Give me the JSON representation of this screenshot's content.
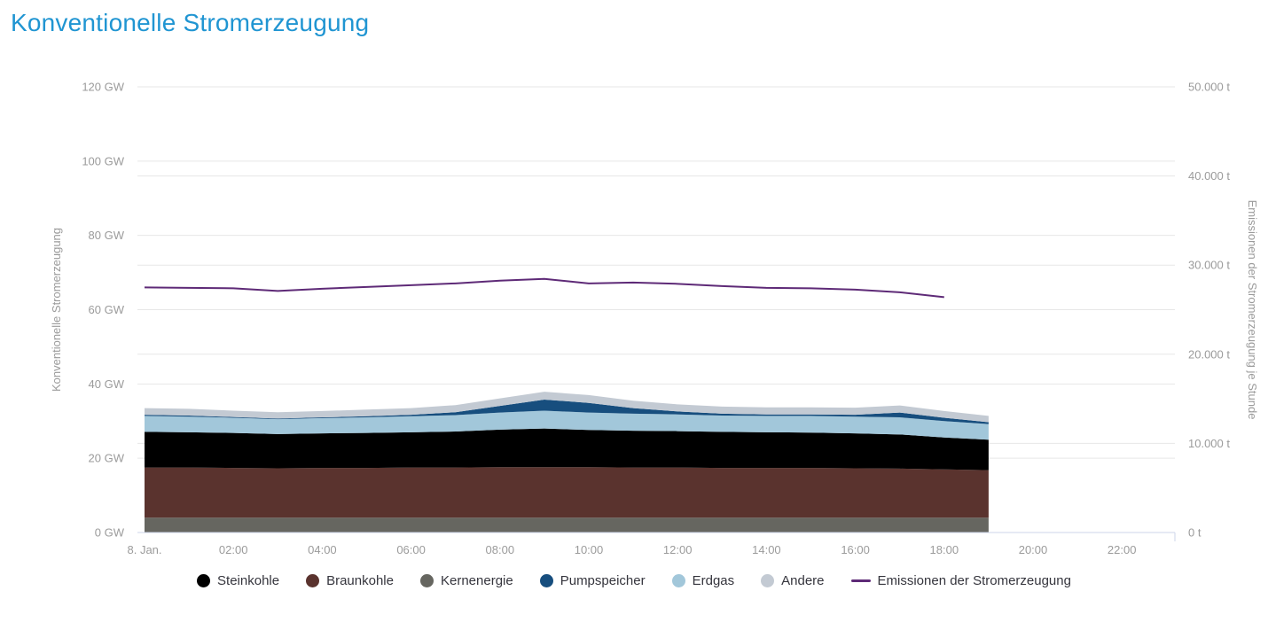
{
  "title": "Konventionelle Stromerzeugung",
  "colors": {
    "title": "#2095d2",
    "axis_text": "#9b9b9b",
    "grid": "#e7e7e7",
    "axis_line": "#ccd6ea",
    "legend_text": "#35353d"
  },
  "chart_data": {
    "type": "area",
    "stacked": true,
    "title": "Konventionelle Stromerzeugung",
    "legend_position": "bottom",
    "x_hours": [
      0,
      1,
      2,
      3,
      4,
      5,
      6,
      7,
      8,
      9,
      10,
      11,
      12,
      13,
      14,
      15,
      16,
      17,
      18,
      19
    ],
    "x_axis": {
      "range": [
        0,
        24
      ],
      "tick_hours": [
        0,
        2,
        4,
        6,
        8,
        10,
        12,
        14,
        16,
        18,
        20,
        22
      ],
      "tick_labels": [
        "8. Jan.",
        "02:00",
        "04:00",
        "06:00",
        "08:00",
        "10:00",
        "12:00",
        "14:00",
        "16:00",
        "18:00",
        "20:00",
        "22:00"
      ]
    },
    "y_left": {
      "label": "Konventionelle Stromerzeugung",
      "unit": "GW",
      "range": [
        0,
        120
      ],
      "tick_values": [
        0,
        20,
        40,
        60,
        80,
        100,
        120
      ],
      "tick_labels": [
        "0 GW",
        "20 GW",
        "40 GW",
        "60 GW",
        "80 GW",
        "100 GW",
        "120 GW"
      ]
    },
    "y_right": {
      "label": "Emissionen der Stromerzeugung je Stunde",
      "unit": "t",
      "range": [
        0,
        50000
      ],
      "tick_values": [
        0,
        10000,
        20000,
        30000,
        40000,
        50000
      ],
      "tick_labels": [
        "0 t",
        "10.000 t",
        "20.000 t",
        "30.000 t",
        "40.000 t",
        "50.000 t"
      ]
    },
    "stack_order": [
      "Kernenergie",
      "Braunkohle",
      "Steinkohle",
      "Erdgas",
      "Pumpspeicher",
      "Andere"
    ],
    "series": [
      {
        "name": "Steinkohle",
        "color": "#000000",
        "values": [
          9.6,
          9.5,
          9.4,
          9.2,
          9.3,
          9.4,
          9.5,
          9.7,
          10.1,
          10.4,
          10.0,
          9.9,
          9.8,
          9.7,
          9.6,
          9.5,
          9.4,
          9.2,
          8.6,
          8.2
        ]
      },
      {
        "name": "Braunkohle",
        "color": "#5a332e",
        "values": [
          13.5,
          13.5,
          13.4,
          13.3,
          13.4,
          13.4,
          13.5,
          13.5,
          13.6,
          13.6,
          13.6,
          13.5,
          13.5,
          13.4,
          13.4,
          13.4,
          13.3,
          13.2,
          13.0,
          12.8
        ]
      },
      {
        "name": "Kernenergie",
        "color": "#666660",
        "values": [
          4,
          4,
          4,
          4,
          4,
          4,
          4,
          4,
          4,
          4,
          4,
          4,
          4,
          4,
          4,
          4,
          4,
          4,
          4,
          4
        ]
      },
      {
        "name": "Pumpspeicher",
        "color": "#174e7e",
        "values": [
          0.3,
          0.3,
          0.2,
          0.2,
          0.2,
          0.3,
          0.4,
          0.8,
          1.8,
          3.0,
          2.6,
          1.5,
          0.8,
          0.5,
          0.4,
          0.4,
          0.5,
          1.3,
          0.9,
          0.5
        ]
      },
      {
        "name": "Erdgas",
        "color": "#a2c7da",
        "values": [
          4.3,
          4.2,
          4.1,
          4.0,
          4.1,
          4.2,
          4.3,
          4.4,
          4.6,
          4.8,
          4.7,
          4.6,
          4.5,
          4.4,
          4.4,
          4.5,
          4.5,
          4.6,
          4.4,
          4.2
        ]
      },
      {
        "name": "Andere",
        "color": "#c3cad3",
        "values": [
          1.8,
          1.8,
          1.7,
          1.7,
          1.7,
          1.8,
          1.8,
          1.9,
          2.0,
          2.1,
          2.1,
          2.0,
          1.9,
          1.9,
          1.9,
          1.9,
          1.9,
          1.9,
          1.8,
          1.7
        ]
      }
    ],
    "line_series": {
      "name": "Emissionen der Stromerzeugung",
      "color": "#5e2a77",
      "axis": "right",
      "x_hours": [
        0,
        1,
        2,
        3,
        4,
        5,
        6,
        7,
        8,
        9,
        10,
        11,
        12,
        13,
        14,
        15,
        16,
        17,
        18
      ],
      "values": [
        27500,
        27450,
        27400,
        27100,
        27350,
        27550,
        27750,
        27950,
        28250,
        28450,
        27950,
        28050,
        27900,
        27650,
        27450,
        27400,
        27250,
        26950,
        26400
      ]
    }
  }
}
